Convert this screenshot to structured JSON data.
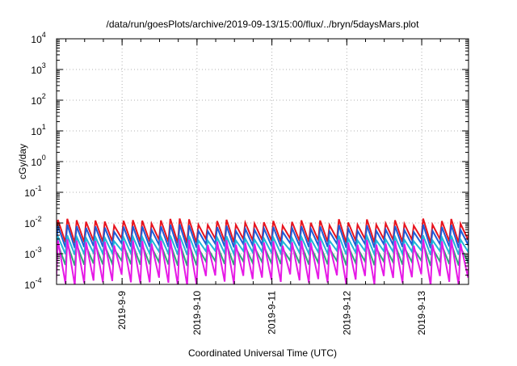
{
  "chart_data": {
    "type": "line",
    "title": "/data/run/goesPlots/archive/2019-09-13/15:00/flux/../bryn/5daysMars.plot",
    "xlabel": "Coordinated Universal Time (UTC)",
    "ylabel": "cGy/day",
    "y_scale": "log",
    "ylim_exponents": [
      -4,
      4
    ],
    "y_tick_labels": [
      {
        "base": "10",
        "exp": "4"
      },
      {
        "base": "10",
        "exp": "3"
      },
      {
        "base": "10",
        "exp": "2"
      },
      {
        "base": "10",
        "exp": "1"
      },
      {
        "base": "10",
        "exp": "0"
      },
      {
        "base": "10",
        "exp": "-1"
      },
      {
        "base": "10",
        "exp": "-2"
      },
      {
        "base": "10",
        "exp": "-3"
      },
      {
        "base": "10",
        "exp": "-4"
      }
    ],
    "xlim": [
      "2019-09-08T03:00",
      "2019-09-13T15:00"
    ],
    "x_ticks": [
      "2019-9-9",
      "2019-9-10",
      "2019-9-11",
      "2019-9-12",
      "2019-9-13"
    ],
    "grid": true,
    "colors": {
      "red": "#e8141e",
      "blue": "#1f5bd6",
      "cyan": "#22b5d8",
      "green": "#2ca87a",
      "magenta": "#e619e6"
    },
    "series": [
      {
        "color": "red",
        "period_hours": 3,
        "peak": [
          0.008,
          0.014
        ],
        "trough": [
          0.0022,
          0.0032
        ]
      },
      {
        "color": "blue",
        "period_hours": 3,
        "peak": [
          0.005,
          0.009
        ],
        "trough": [
          0.0015,
          0.0022
        ]
      },
      {
        "color": "cyan",
        "period_hours": 3,
        "peak": [
          0.0025,
          0.004
        ],
        "trough": [
          0.0009,
          0.0013
        ]
      },
      {
        "color": "green",
        "period_hours": 3,
        "peak": [
          0.0014,
          0.0022
        ],
        "trough": [
          0.0004,
          0.0006
        ]
      },
      {
        "color": "magenta",
        "period_hours": 3,
        "peak": [
          0.0018,
          0.003
        ],
        "trough": [
          9e-05,
          0.00022
        ]
      }
    ]
  }
}
